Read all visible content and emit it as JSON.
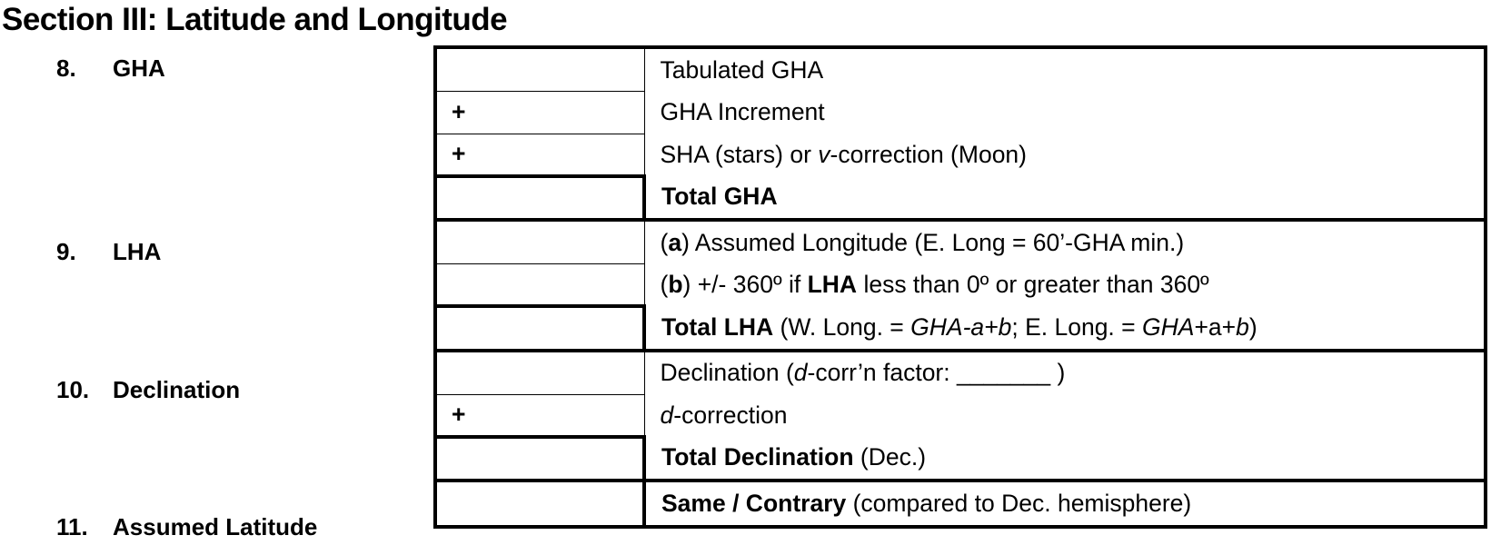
{
  "title": "Section III: Latitude and Longitude",
  "groups": [
    {
      "number": "8.",
      "label": "GHA",
      "rows": [
        {
          "sign": "",
          "segments": [
            {
              "t": "Tabulated GHA"
            }
          ]
        },
        {
          "sign": "+",
          "segments": [
            {
              "t": "GHA Increment"
            }
          ]
        },
        {
          "sign": "+",
          "segments": [
            {
              "t": "SHA (stars) or "
            },
            {
              "t": "v",
              "i": true
            },
            {
              "t": "-correction (Moon)"
            }
          ]
        },
        {
          "sign": "",
          "total": true,
          "segments": [
            {
              "t": "Total GHA",
              "b": true
            }
          ]
        }
      ]
    },
    {
      "number": "9.",
      "label": "LHA",
      "rows": [
        {
          "sign": "",
          "segments": [
            {
              "t": "("
            },
            {
              "t": "a",
              "b": true
            },
            {
              "t": ") Assumed Longitude (E. Long = 60’-GHA min.)"
            }
          ]
        },
        {
          "sign": "",
          "segments": [
            {
              "t": "("
            },
            {
              "t": "b",
              "b": true
            },
            {
              "t": ") +/- 360º if "
            },
            {
              "t": "LHA",
              "b": true
            },
            {
              "t": " less than 0º or greater than 360º"
            }
          ]
        },
        {
          "sign": "",
          "total": true,
          "segments": [
            {
              "t": "Total LHA",
              "b": true
            },
            {
              "t": " (W. Long. = "
            },
            {
              "t": "GHA-a+b",
              "i": true
            },
            {
              "t": "; E. Long. = "
            },
            {
              "t": "GHA",
              "i": true
            },
            {
              "t": "+a+"
            },
            {
              "t": "b",
              "i": true
            },
            {
              "t": ")"
            }
          ]
        }
      ]
    },
    {
      "number": "10.",
      "label": "Declination",
      "rows": [
        {
          "sign": "",
          "segments": [
            {
              "t": "Declination ("
            },
            {
              "t": "d",
              "i": true
            },
            {
              "t": "-corr’n factor: _______ )"
            }
          ]
        },
        {
          "sign": "+",
          "segments": [
            {
              "t": "d",
              "i": true
            },
            {
              "t": "-correction"
            }
          ]
        },
        {
          "sign": "",
          "total": true,
          "segments": [
            {
              "t": "Total Declination",
              "b": true
            },
            {
              "t": " (Dec.)"
            }
          ]
        }
      ]
    },
    {
      "number": "11.",
      "label": "Assumed Latitude",
      "rows": [
        {
          "sign": "",
          "total": true,
          "segments": [
            {
              "t": "Same / Contrary",
              "b": true
            },
            {
              "t": " (compared to Dec. hemisphere)"
            }
          ]
        }
      ]
    }
  ]
}
